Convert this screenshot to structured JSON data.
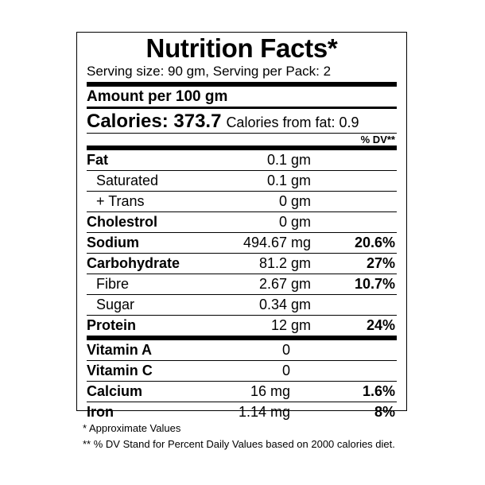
{
  "label": {
    "title": "Nutrition Facts*",
    "serving": "Serving size: 90 gm, Serving per Pack: 2",
    "amount_per": "Amount per 100 gm",
    "calories_label": "Calories: 373.7",
    "calories_fat": "Calories from fat: 0.9",
    "dv_header": "% DV**"
  },
  "nutrients": [
    {
      "name": "Fat",
      "amount": "0.1 gm",
      "dv": ""
    },
    {
      "name": "Saturated",
      "amount": "0.1 gm",
      "dv": ""
    },
    {
      "name": "+ Trans",
      "amount": "0 gm",
      "dv": ""
    },
    {
      "name": "Cholestrol",
      "amount": "0 gm",
      "dv": ""
    },
    {
      "name": "Sodium",
      "amount": "494.67 mg",
      "dv": "20.6%"
    },
    {
      "name": "Carbohydrate",
      "amount": "81.2 gm",
      "dv": "27%"
    },
    {
      "name": "Fibre",
      "amount": "2.67 gm",
      "dv": "10.7%"
    },
    {
      "name": "Sugar",
      "amount": "0.34 gm",
      "dv": ""
    },
    {
      "name": "Protein",
      "amount": "12 gm",
      "dv": "24%"
    }
  ],
  "vitamins": [
    {
      "name": "Vitamin A",
      "amount": "0",
      "dv": ""
    },
    {
      "name": "Vitamin C",
      "amount": "0",
      "dv": ""
    },
    {
      "name": "Calcium",
      "amount": "16 mg",
      "dv": "1.6%"
    },
    {
      "name": "Iron",
      "amount": "1.14 mg",
      "dv": "8%"
    }
  ],
  "footnotes": {
    "approx": "* Approximate Values",
    "dv_note": "** % DV Stand for Percent Daily Values based on 2000 calories diet."
  }
}
